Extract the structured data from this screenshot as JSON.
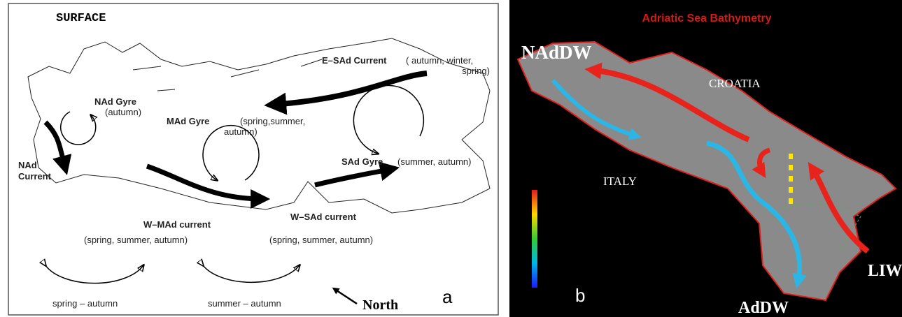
{
  "panel_a": {
    "title": "SURFACE",
    "label": "a",
    "north": "North",
    "labels": [
      "E–SAd Current",
      "( autumn, winter,",
      "spring)",
      "NAd Gyre",
      "(autumn)",
      "MAd Gyre",
      "(spring,summer,",
      "autumn)",
      "SAd Gyre",
      "(summer, autumn)",
      "NAd",
      "Current",
      "W–MAd current",
      "(spring, summer, autumn)",
      "W–SAd current",
      "(spring, summer, autumn)",
      "spring – autumn",
      "summer – autumn"
    ]
  },
  "panel_b": {
    "title": "Adriatic Sea Bathymetry",
    "label": "b",
    "labels": [
      "NAdDW",
      "CROATIA",
      "ITALY",
      "LIW",
      "AdDW"
    ]
  }
}
